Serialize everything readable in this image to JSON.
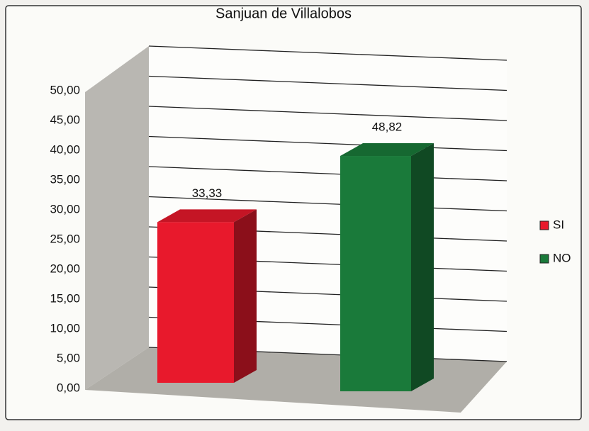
{
  "chart_data": {
    "type": "bar3d",
    "title": "Sanjuan de Villalobos",
    "series": [
      {
        "name": "SI",
        "color": "#e8192c",
        "values": [
          33.33
        ],
        "value_labels": [
          "33,33"
        ]
      },
      {
        "name": "NO",
        "color": "#1a7a3a",
        "values": [
          48.82
        ],
        "value_labels": [
          "48,82"
        ]
      }
    ],
    "ylim": [
      0,
      50
    ],
    "yticks": [
      {
        "value": 0,
        "label": "0,00"
      },
      {
        "value": 5,
        "label": "5,00"
      },
      {
        "value": 10,
        "label": "10,00"
      },
      {
        "value": 15,
        "label": "15,00"
      },
      {
        "value": 20,
        "label": "20,00"
      },
      {
        "value": 25,
        "label": "25,00"
      },
      {
        "value": 30,
        "label": "30,00"
      },
      {
        "value": 35,
        "label": "35,00"
      },
      {
        "value": 40,
        "label": "40,00"
      },
      {
        "value": 45,
        "label": "45,00"
      },
      {
        "value": 50,
        "label": "50,00"
      }
    ],
    "grid": true,
    "legend": "right"
  }
}
